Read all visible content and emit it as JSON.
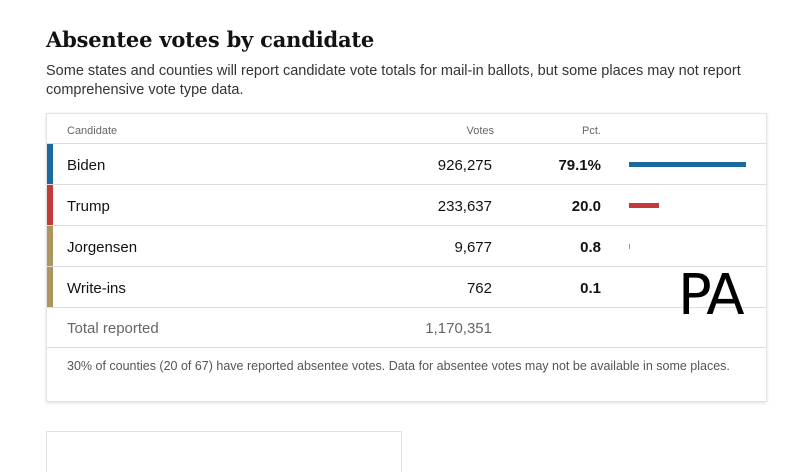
{
  "title": "Absentee votes by candidate",
  "subtitle": "Some states and counties will report candidate vote totals for mail-in ballots, but some places may not report comprehensive vote type data.",
  "table": {
    "headers": {
      "candidate": "Candidate",
      "votes": "Votes",
      "pct": "Pct."
    },
    "rows": [
      {
        "name": "Biden",
        "votes": "926,275",
        "pct": "79.1%",
        "pct_value": 79.1,
        "color": "#1a6aa0"
      },
      {
        "name": "Trump",
        "votes": "233,637",
        "pct": "20.0",
        "pct_value": 20.0,
        "color": "#c33a3a"
      },
      {
        "name": "Jorgensen",
        "votes": "9,677",
        "pct": "0.8",
        "pct_value": 0.8,
        "color": "#ad9560"
      },
      {
        "name": "Write-ins",
        "votes": "762",
        "pct": "0.1",
        "pct_value": 0.1,
        "color": "#ad9560"
      }
    ],
    "total": {
      "label": "Total reported",
      "votes": "1,170,351"
    },
    "footnote": "30% of counties (20 of 67) have reported absentee votes. Data for absentee votes may not be available in some places."
  },
  "overlay_text": "PA"
}
